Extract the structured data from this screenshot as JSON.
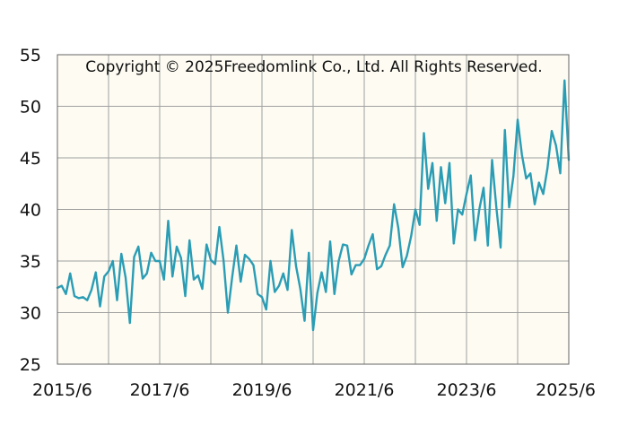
{
  "chart_data": {
    "type": "line",
    "title": "",
    "xlabel": "",
    "ylabel": "",
    "watermark": "Copyright © 2025Freedomlink Co., Ltd. All Rights Reserved.",
    "ylim": [
      25,
      55
    ],
    "y_ticks": [
      "25",
      "30",
      "35",
      "40",
      "45",
      "50",
      "55"
    ],
    "x_range": [
      "2015/6",
      "2025/6"
    ],
    "x_ticks": [
      "2015/6",
      "2017/6",
      "2019/6",
      "2021/6",
      "2023/6",
      "2025/6"
    ],
    "grid": true,
    "legend": "none",
    "colors": {
      "line": "#2a9db5",
      "plot_background": "#fdfbf2",
      "grid": "#a0a0a0",
      "axis": "#666666"
    },
    "series": [
      {
        "x": [
          "2015/6",
          "2015/7",
          "2015/8",
          "2015/9",
          "2015/10",
          "2015/11",
          "2015/12",
          "2016/1",
          "2016/2",
          "2016/3",
          "2016/4",
          "2016/5",
          "2016/6",
          "2016/7",
          "2016/8",
          "2016/9",
          "2016/10",
          "2016/11",
          "2016/12",
          "2017/1",
          "2017/2",
          "2017/3",
          "2017/4",
          "2017/5",
          "2017/6",
          "2017/7",
          "2017/8",
          "2017/9",
          "2017/10",
          "2017/11",
          "2017/12",
          "2018/1",
          "2018/2",
          "2018/3",
          "2018/4",
          "2018/5",
          "2018/6",
          "2018/7",
          "2018/8",
          "2018/9",
          "2018/10",
          "2018/11",
          "2018/12",
          "2019/1",
          "2019/2",
          "2019/3",
          "2019/4",
          "2019/5",
          "2019/6",
          "2019/7",
          "2019/8",
          "2019/9",
          "2019/10",
          "2019/11",
          "2019/12",
          "2020/1",
          "2020/2",
          "2020/3",
          "2020/4",
          "2020/5",
          "2020/6",
          "2020/7",
          "2020/8",
          "2020/9",
          "2020/10",
          "2020/11",
          "2020/12",
          "2021/1",
          "2021/2",
          "2021/3",
          "2021/4",
          "2021/5",
          "2021/6",
          "2021/7",
          "2021/8",
          "2021/9",
          "2021/10",
          "2021/11",
          "2021/12",
          "2022/1",
          "2022/2",
          "2022/3",
          "2022/4",
          "2022/5",
          "2022/6",
          "2022/7",
          "2022/8",
          "2022/9",
          "2022/10",
          "2022/11",
          "2022/12",
          "2023/1",
          "2023/2",
          "2023/3",
          "2023/4",
          "2023/5",
          "2023/6",
          "2023/7",
          "2023/8",
          "2023/9",
          "2023/10",
          "2023/11",
          "2023/12",
          "2024/1",
          "2024/2",
          "2024/3",
          "2024/4",
          "2024/5",
          "2024/6",
          "2024/7",
          "2024/8",
          "2024/9",
          "2024/10",
          "2024/11",
          "2024/12",
          "2025/1",
          "2025/2",
          "2025/3",
          "2025/4",
          "2025/5",
          "2025/6"
        ],
        "values": [
          32.4,
          32.6,
          31.8,
          33.8,
          31.6,
          31.4,
          31.5,
          31.2,
          32.2,
          33.9,
          30.6,
          33.5,
          34.0,
          35.0,
          31.2,
          35.7,
          33.4,
          29.0,
          35.4,
          36.4,
          33.3,
          33.8,
          35.8,
          35.0,
          35.0,
          33.2,
          38.9,
          33.5,
          36.4,
          35.3,
          31.6,
          37.0,
          33.2,
          33.6,
          32.3,
          36.6,
          35.1,
          34.7,
          38.3,
          35.0,
          30.0,
          33.4,
          36.5,
          33.0,
          35.6,
          35.2,
          34.6,
          31.8,
          31.5,
          30.3,
          35.0,
          32.0,
          32.6,
          33.8,
          32.2,
          38.0,
          34.5,
          32.3,
          29.2,
          35.8,
          28.3,
          31.9,
          33.9,
          32.0,
          36.9,
          31.8,
          35.0,
          36.6,
          36.5,
          33.7,
          34.6,
          34.6,
          35.2,
          36.5,
          37.6,
          34.2,
          34.5,
          35.6,
          36.5,
          40.5,
          38.2,
          34.4,
          35.5,
          37.4,
          40.0,
          38.5,
          47.4,
          42.0,
          44.5,
          38.9,
          44.1,
          40.6,
          44.5,
          36.7,
          40.0,
          39.5,
          41.5,
          43.3,
          37.0,
          40.0,
          42.1,
          36.5,
          44.8,
          40.2,
          36.3,
          47.7,
          40.2,
          43.2,
          48.7,
          45.3,
          43.0,
          43.5,
          40.5,
          42.6,
          41.5,
          44.0,
          47.6,
          46.2,
          43.5,
          52.5,
          44.8
        ]
      }
    ]
  }
}
